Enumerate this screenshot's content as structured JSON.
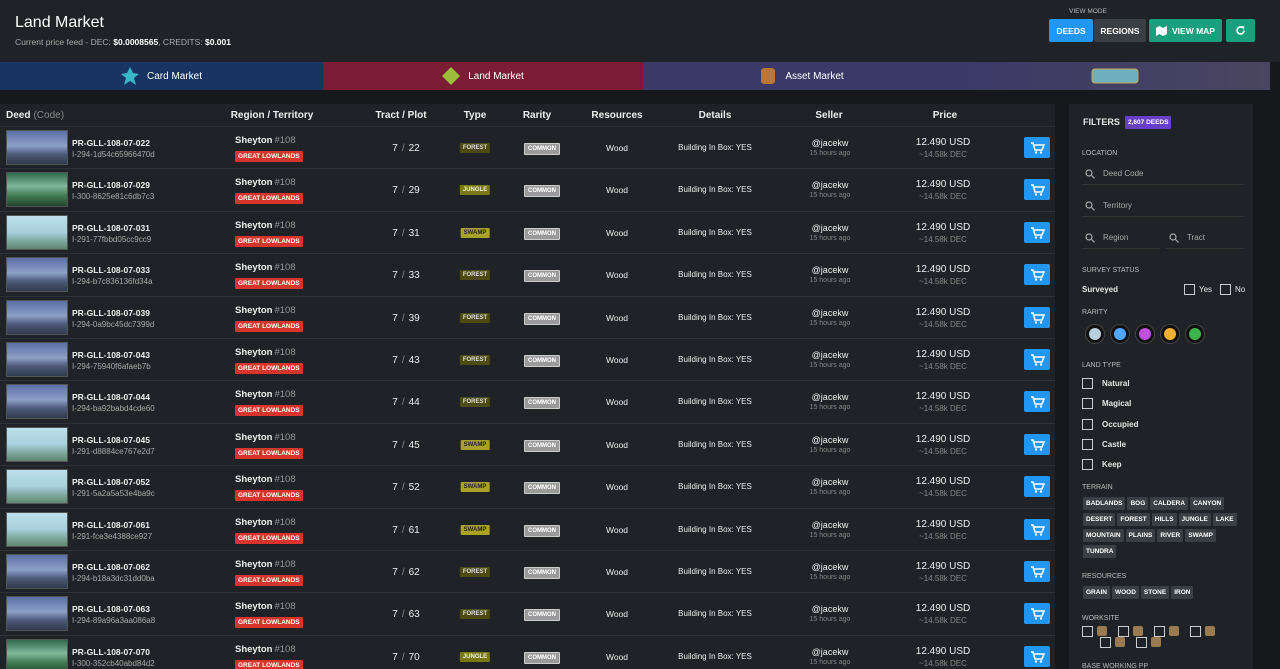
{
  "header": {
    "title": "Land Market",
    "price_feed_label": "Current price feed - DEC:",
    "dec_price": "$0.0008565",
    "credits_label": ", CREDITS:",
    "credits_price": "$0.001"
  },
  "view_mode": {
    "label": "VIEW MODE",
    "buttons": [
      "DEEDS",
      "REGIONS",
      "VIEW MAP"
    ]
  },
  "nav": {
    "tabs": [
      "Card Market",
      "Land Market",
      "Asset Market"
    ]
  },
  "table": {
    "columns": {
      "deed": "Deed",
      "code": "(Code)",
      "region": "Region / Territory",
      "tract": "Tract / Plot",
      "type": "Type",
      "rarity": "Rarity",
      "resources": "Resources",
      "details": "Details",
      "seller": "Seller",
      "price": "Price"
    },
    "rows": [
      {
        "deed": "PR-GLL-108-07-022",
        "id": "I-294-1d54c65966470d",
        "region": "Sheyton",
        "region_no": "#108",
        "territory": "GREAT LOWLANDS",
        "tract": 7,
        "plot": 22,
        "type": "FOREST",
        "rarity": "COMMON",
        "resource": "Wood",
        "details": "Building In Box: YES",
        "seller": "@jacekw",
        "listed": "15 hours ago",
        "price": "12.490 USD",
        "price_dec": "~14.58k DEC"
      },
      {
        "deed": "PR-GLL-108-07-029",
        "id": "I-300-8625e81c6db7c3",
        "region": "Sheyton",
        "region_no": "#108",
        "territory": "GREAT LOWLANDS",
        "tract": 7,
        "plot": 29,
        "type": "JUNGLE",
        "rarity": "COMMON",
        "resource": "Wood",
        "details": "Building In Box: YES",
        "seller": "@jacekw",
        "listed": "15 hours ago",
        "price": "12.490 USD",
        "price_dec": "~14.58k DEC"
      },
      {
        "deed": "PR-GLL-108-07-031",
        "id": "I-291-77fbbd05cc9cc9",
        "region": "Sheyton",
        "region_no": "#108",
        "territory": "GREAT LOWLANDS",
        "tract": 7,
        "plot": 31,
        "type": "SWAMP",
        "rarity": "COMMON",
        "resource": "Wood",
        "details": "Building In Box: YES",
        "seller": "@jacekw",
        "listed": "15 hours ago",
        "price": "12.490 USD",
        "price_dec": "~14.58k DEC"
      },
      {
        "deed": "PR-GLL-108-07-033",
        "id": "I-294-b7c836136fd34a",
        "region": "Sheyton",
        "region_no": "#108",
        "territory": "GREAT LOWLANDS",
        "tract": 7,
        "plot": 33,
        "type": "FOREST",
        "rarity": "COMMON",
        "resource": "Wood",
        "details": "Building In Box: YES",
        "seller": "@jacekw",
        "listed": "15 hours ago",
        "price": "12.490 USD",
        "price_dec": "~14.58k DEC"
      },
      {
        "deed": "PR-GLL-108-07-039",
        "id": "I-294-0a9bc45dc7399d",
        "region": "Sheyton",
        "region_no": "#108",
        "territory": "GREAT LOWLANDS",
        "tract": 7,
        "plot": 39,
        "type": "FOREST",
        "rarity": "COMMON",
        "resource": "Wood",
        "details": "Building In Box: YES",
        "seller": "@jacekw",
        "listed": "15 hours ago",
        "price": "12.490 USD",
        "price_dec": "~14.58k DEC"
      },
      {
        "deed": "PR-GLL-108-07-043",
        "id": "I-294-75940f6afaeb7b",
        "region": "Sheyton",
        "region_no": "#108",
        "territory": "GREAT LOWLANDS",
        "tract": 7,
        "plot": 43,
        "type": "FOREST",
        "rarity": "COMMON",
        "resource": "Wood",
        "details": "Building In Box: YES",
        "seller": "@jacekw",
        "listed": "15 hours ago",
        "price": "12.490 USD",
        "price_dec": "~14.58k DEC"
      },
      {
        "deed": "PR-GLL-108-07-044",
        "id": "I-294-ba92babd4cde60",
        "region": "Sheyton",
        "region_no": "#108",
        "territory": "GREAT LOWLANDS",
        "tract": 7,
        "plot": 44,
        "type": "FOREST",
        "rarity": "COMMON",
        "resource": "Wood",
        "details": "Building In Box: YES",
        "seller": "@jacekw",
        "listed": "15 hours ago",
        "price": "12.490 USD",
        "price_dec": "~14.58k DEC"
      },
      {
        "deed": "PR-GLL-108-07-045",
        "id": "I-291-d8884ce767e2d7",
        "region": "Sheyton",
        "region_no": "#108",
        "territory": "GREAT LOWLANDS",
        "tract": 7,
        "plot": 45,
        "type": "SWAMP",
        "rarity": "COMMON",
        "resource": "Wood",
        "details": "Building In Box: YES",
        "seller": "@jacekw",
        "listed": "15 hours ago",
        "price": "12.490 USD",
        "price_dec": "~14.58k DEC"
      },
      {
        "deed": "PR-GLL-108-07-052",
        "id": "I-291-5a2a5a53e4ba9c",
        "region": "Sheyton",
        "region_no": "#108",
        "territory": "GREAT LOWLANDS",
        "tract": 7,
        "plot": 52,
        "type": "SWAMP",
        "rarity": "COMMON",
        "resource": "Wood",
        "details": "Building In Box: YES",
        "seller": "@jacekw",
        "listed": "15 hours ago",
        "price": "12.490 USD",
        "price_dec": "~14.58k DEC"
      },
      {
        "deed": "PR-GLL-108-07-061",
        "id": "I-291-fce3e4388ce927",
        "region": "Sheyton",
        "region_no": "#108",
        "territory": "GREAT LOWLANDS",
        "tract": 7,
        "plot": 61,
        "type": "SWAMP",
        "rarity": "COMMON",
        "resource": "Wood",
        "details": "Building In Box: YES",
        "seller": "@jacekw",
        "listed": "15 hours ago",
        "price": "12.490 USD",
        "price_dec": "~14.58k DEC"
      },
      {
        "deed": "PR-GLL-108-07-062",
        "id": "I-294-b18a3dc31dd0ba",
        "region": "Sheyton",
        "region_no": "#108",
        "territory": "GREAT LOWLANDS",
        "tract": 7,
        "plot": 62,
        "type": "FOREST",
        "rarity": "COMMON",
        "resource": "Wood",
        "details": "Building In Box: YES",
        "seller": "@jacekw",
        "listed": "15 hours ago",
        "price": "12.490 USD",
        "price_dec": "~14.58k DEC"
      },
      {
        "deed": "PR-GLL-108-07-063",
        "id": "I-294-89a96a3aa086a8",
        "region": "Sheyton",
        "region_no": "#108",
        "territory": "GREAT LOWLANDS",
        "tract": 7,
        "plot": 63,
        "type": "FOREST",
        "rarity": "COMMON",
        "resource": "Wood",
        "details": "Building In Box: YES",
        "seller": "@jacekw",
        "listed": "15 hours ago",
        "price": "12.490 USD",
        "price_dec": "~14.58k DEC"
      },
      {
        "deed": "PR-GLL-108-07-070",
        "id": "I-300-352cb40abd84d2",
        "region": "Sheyton",
        "region_no": "#108",
        "territory": "GREAT LOWLANDS",
        "tract": 7,
        "plot": 70,
        "type": "JUNGLE",
        "rarity": "COMMON",
        "resource": "Wood",
        "details": "Building In Box: YES",
        "seller": "@jacekw",
        "listed": "15 hours ago",
        "price": "12.490 USD",
        "price_dec": "~14.58k DEC"
      }
    ]
  },
  "filters": {
    "title": "FILTERS",
    "count": "2,607 DEEDS",
    "location_label": "LOCATION",
    "placeholders": [
      "Deed Code",
      "Territory",
      "Region",
      "Tract"
    ],
    "survey_label": "SURVEY STATUS",
    "surveyed": "Surveyed",
    "yes": "Yes",
    "no": "No",
    "rarity_label": "RARITY",
    "land_type_label": "LAND TYPE",
    "land_types": [
      "Natural",
      "Magical",
      "Occupied",
      "Castle",
      "Keep"
    ],
    "terrain_label": "TERRAIN",
    "terrains": [
      "BADLANDS",
      "BOG",
      "CALDERA",
      "CANYON",
      "DESERT",
      "FOREST",
      "HILLS",
      "JUNGLE",
      "LAKE",
      "MOUNTAIN",
      "PLAINS",
      "RIVER",
      "SWAMP",
      "TUNDRA"
    ],
    "resources_label": "RESOURCES",
    "resources": [
      "GRAIN",
      "WOOD",
      "STONE",
      "IRON"
    ],
    "worksite_label": "WORKSITE",
    "base_label": "BASE WORKING PP"
  }
}
